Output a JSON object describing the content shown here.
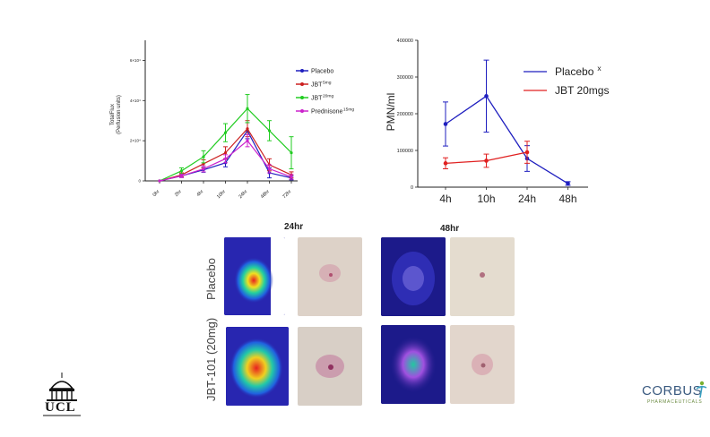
{
  "chart_data": [
    {
      "type": "line",
      "ylabel": "TotalFlux",
      "ylabel2": "(Perfusion units)",
      "categories": [
        "0hr",
        "2hr",
        "4hr",
        "10hr",
        "24hr",
        "48hr",
        "72hr"
      ],
      "ytick_labels": [
        "0",
        "2×10⁴",
        "4×10⁴",
        "6×10⁴"
      ],
      "ylim": [
        0,
        70000
      ],
      "yticks": [
        0,
        20000,
        40000,
        60000
      ],
      "series": [
        {
          "name": "Placebo",
          "sup": "",
          "color": "#1f1fbf",
          "values": [
            0,
            2500,
            5500,
            9000,
            25000,
            4000,
            1500
          ],
          "errors": [
            0,
            800,
            1200,
            2000,
            4000,
            2500,
            1000
          ]
        },
        {
          "name": "JBT",
          "sup": "5mg",
          "color": "#cc2020",
          "values": [
            0,
            3000,
            8500,
            14000,
            26000,
            8000,
            3000
          ],
          "errors": [
            0,
            1000,
            2000,
            3000,
            4000,
            3000,
            1500
          ]
        },
        {
          "name": "JBT",
          "sup": "20mg",
          "color": "#22cc22",
          "values": [
            0,
            5000,
            12000,
            24000,
            36000,
            25000,
            14000
          ],
          "errors": [
            0,
            1500,
            3000,
            4500,
            7000,
            5000,
            8000
          ]
        },
        {
          "name": "Prednisone",
          "sup": "15mg",
          "color": "#cc22cc",
          "values": [
            0,
            2500,
            6000,
            11000,
            20000,
            6000,
            2000
          ],
          "errors": [
            0,
            800,
            1500,
            2000,
            3000,
            2000,
            1200
          ]
        }
      ]
    },
    {
      "type": "line",
      "ylabel": "PMN/ml",
      "categories": [
        "4h",
        "10h",
        "24h",
        "48h"
      ],
      "ytick_labels": [
        "0",
        "100000",
        "200000",
        "300000",
        "400000"
      ],
      "ylim": [
        0,
        400000
      ],
      "yticks": [
        0,
        100000,
        200000,
        300000,
        400000
      ],
      "series": [
        {
          "name": "Placebo",
          "sup": "x",
          "color": "#1f1fbf",
          "values": [
            172000,
            248000,
            78000,
            10000
          ],
          "errors": [
            60000,
            98000,
            35000,
            5000
          ]
        },
        {
          "name": "JBT 20mgs",
          "sup": "",
          "color": "#e02020",
          "values": [
            65000,
            72000,
            95000,
            null
          ],
          "errors": [
            15000,
            18000,
            30000,
            null
          ]
        }
      ]
    }
  ],
  "images": {
    "col_24hr": "24hr",
    "col_48hr": "48hr",
    "row_placebo": "Placebo",
    "row_jbt": "JBT-101 (20mg)"
  },
  "logos": {
    "ucl": "UCL",
    "corbus": "CORBUS",
    "corbus_sub": "PHARMACEUTICALS"
  }
}
